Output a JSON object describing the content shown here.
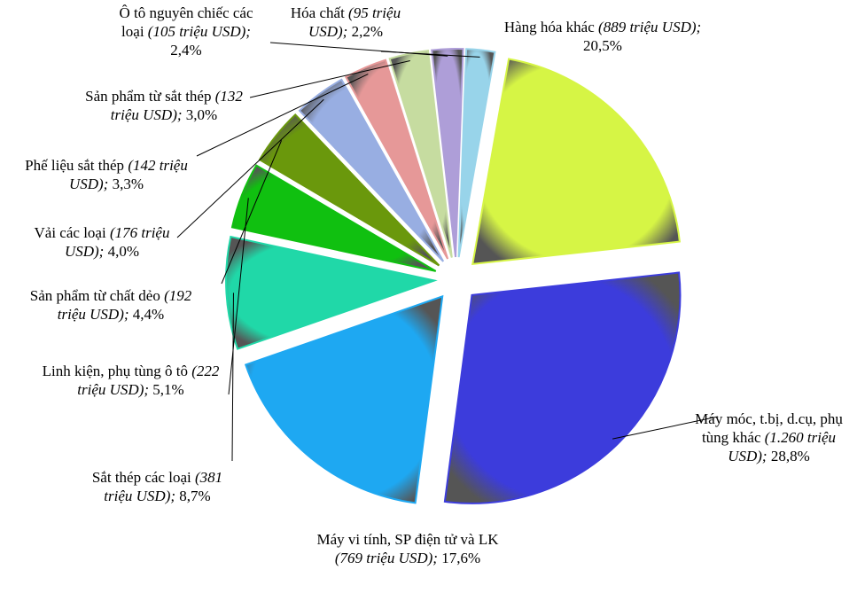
{
  "chart_data": {
    "type": "pie",
    "categories": [
      "Hàng hóa khác",
      "Máy móc, t.bị, d.cụ, phụ tùng khác",
      "Máy vi tính, SP điện tử và LK",
      "Sắt thép các loại",
      "Linh kiện, phụ tùng ô tô",
      "Sản phẩm từ chất dẻo",
      "Vải các loại",
      "Phế liệu sắt thép",
      "Sản phẩm từ sắt thép",
      "Ô tô nguyên chiếc các loại",
      "Hóa chất"
    ],
    "values": [
      20.5,
      28.8,
      17.6,
      8.7,
      5.1,
      4.4,
      4.0,
      3.3,
      3.0,
      2.4,
      2.2
    ],
    "value_labels": [
      "20,5%",
      "28,8%",
      "17,6%",
      "8,7%",
      "5,1%",
      "4,4%",
      "4,0%",
      "3,3%",
      "3,0%",
      "2,4%",
      "2,2%"
    ],
    "amounts": [
      889,
      1260,
      769,
      381,
      222,
      192,
      176,
      142,
      132,
      105,
      95
    ],
    "amount_labels": [
      "(889 triệu USD);",
      "(1.260 triệu USD);",
      "(769 triệu USD);",
      "(381 triệu USD);",
      "(222 triệu USD);",
      "(192 triệu USD);",
      "(176 triệu USD);",
      "(142 triệu USD);",
      "(132 triệu USD);",
      "(105 triệu USD);",
      "(95 triệu USD);"
    ],
    "colors": [
      "#d6f545",
      "#3c3cdc",
      "#1ea8f2",
      "#20d8a8",
      "#10c010",
      "#6a980c",
      "#98aee2",
      "#e69898",
      "#c6dca0",
      "#ae9ed8",
      "#98d4ea"
    ]
  }
}
